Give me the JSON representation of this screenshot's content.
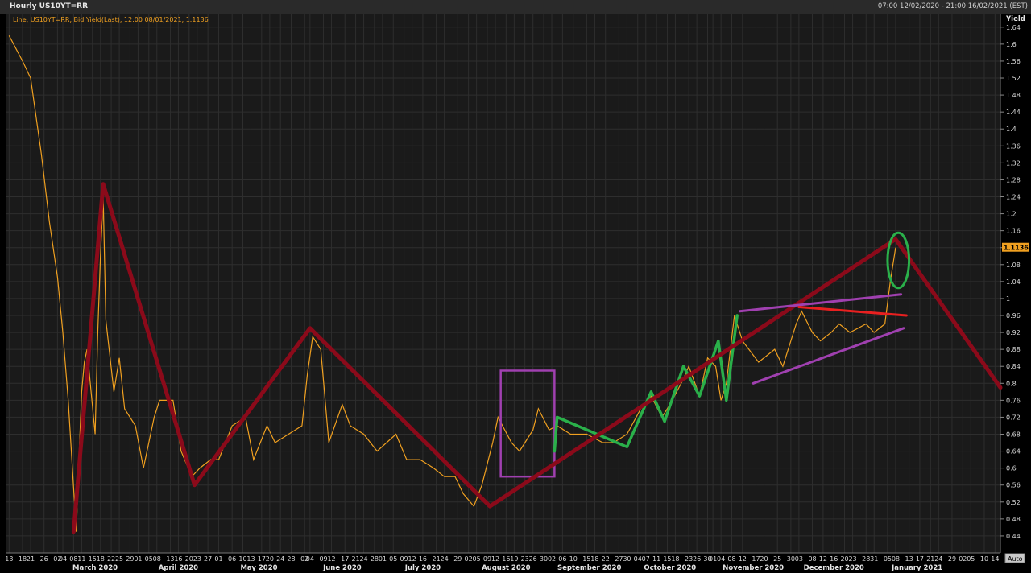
{
  "window": {
    "title": "Hourly US10YT=RR",
    "range": "07:00 12/02/2020 - 21:00 16/02/2021 (EST)"
  },
  "legend": {
    "text": "Line, US10YT=RR, Bid Yield(Last), 12:00 08/01/2021, 1.1136",
    "color": "#f0a020"
  },
  "axis": {
    "y_title": "Yield",
    "last_value_label": "1.1136",
    "auto_button": "Auto"
  },
  "colors": {
    "background": "#1a1a1a",
    "grid": "#2e2e2e",
    "price_line": "#f0a020",
    "trend_dark_red": "#8b0a1a",
    "trend_green": "#2ab04a",
    "trend_purple": "#a040b0",
    "trend_red": "#e82020",
    "box_purple": "#a040b0"
  },
  "chart_data": {
    "type": "line",
    "series": [
      {
        "values": [
          [
            "2020-02-13",
            1.62
          ],
          [
            "2020-02-18",
            1.56
          ],
          [
            "2020-02-21",
            1.52
          ],
          [
            "2020-02-25",
            1.34
          ],
          [
            "2020-02-28",
            1.18
          ],
          [
            "2020-03-02",
            1.05
          ],
          [
            "2020-03-04",
            0.92
          ],
          [
            "2020-03-06",
            0.76
          ],
          [
            "2020-03-09",
            0.45
          ],
          [
            "2020-03-10",
            0.62
          ],
          [
            "2020-03-11",
            0.78
          ],
          [
            "2020-03-12",
            0.85
          ],
          [
            "2020-03-13",
            0.88
          ],
          [
            "2020-03-16",
            0.68
          ],
          [
            "2020-03-17",
            0.92
          ],
          [
            "2020-03-18",
            1.1
          ],
          [
            "2020-03-19",
            1.24
          ],
          [
            "2020-03-20",
            0.95
          ],
          [
            "2020-03-23",
            0.78
          ],
          [
            "2020-03-25",
            0.86
          ],
          [
            "2020-03-27",
            0.74
          ],
          [
            "2020-03-31",
            0.7
          ],
          [
            "2020-04-03",
            0.6
          ],
          [
            "2020-04-07",
            0.72
          ],
          [
            "2020-04-09",
            0.76
          ],
          [
            "2020-04-14",
            0.76
          ],
          [
            "2020-04-17",
            0.64
          ],
          [
            "2020-04-21",
            0.58
          ],
          [
            "2020-04-24",
            0.6
          ],
          [
            "2020-04-28",
            0.62
          ],
          [
            "2020-05-01",
            0.62
          ],
          [
            "2020-05-06",
            0.7
          ],
          [
            "2020-05-11",
            0.72
          ],
          [
            "2020-05-14",
            0.62
          ],
          [
            "2020-05-19",
            0.7
          ],
          [
            "2020-05-22",
            0.66
          ],
          [
            "2020-05-27",
            0.68
          ],
          [
            "2020-06-01",
            0.7
          ],
          [
            "2020-06-03",
            0.82
          ],
          [
            "2020-06-05",
            0.91
          ],
          [
            "2020-06-08",
            0.88
          ],
          [
            "2020-06-11",
            0.66
          ],
          [
            "2020-06-16",
            0.75
          ],
          [
            "2020-06-19",
            0.7
          ],
          [
            "2020-06-24",
            0.68
          ],
          [
            "2020-06-29",
            0.64
          ],
          [
            "2020-07-06",
            0.68
          ],
          [
            "2020-07-10",
            0.62
          ],
          [
            "2020-07-15",
            0.62
          ],
          [
            "2020-07-20",
            0.6
          ],
          [
            "2020-07-24",
            0.58
          ],
          [
            "2020-07-28",
            0.58
          ],
          [
            "2020-07-31",
            0.54
          ],
          [
            "2020-08-04",
            0.51
          ],
          [
            "2020-08-07",
            0.56
          ],
          [
            "2020-08-11",
            0.66
          ],
          [
            "2020-08-13",
            0.72
          ],
          [
            "2020-08-18",
            0.66
          ],
          [
            "2020-08-21",
            0.64
          ],
          [
            "2020-08-26",
            0.69
          ],
          [
            "2020-08-28",
            0.74
          ],
          [
            "2020-09-01",
            0.69
          ],
          [
            "2020-09-04",
            0.7
          ],
          [
            "2020-09-09",
            0.68
          ],
          [
            "2020-09-15",
            0.68
          ],
          [
            "2020-09-21",
            0.66
          ],
          [
            "2020-09-25",
            0.66
          ],
          [
            "2020-09-30",
            0.68
          ],
          [
            "2020-10-06",
            0.75
          ],
          [
            "2020-10-09",
            0.77
          ],
          [
            "2020-10-13",
            0.72
          ],
          [
            "2020-10-16",
            0.75
          ],
          [
            "2020-10-21",
            0.81
          ],
          [
            "2020-10-23",
            0.84
          ],
          [
            "2020-10-27",
            0.77
          ],
          [
            "2020-10-30",
            0.86
          ],
          [
            "2020-11-02",
            0.84
          ],
          [
            "2020-11-04",
            0.76
          ],
          [
            "2020-11-06",
            0.8
          ],
          [
            "2020-11-09",
            0.96
          ],
          [
            "2020-11-12",
            0.9
          ],
          [
            "2020-11-18",
            0.85
          ],
          [
            "2020-11-24",
            0.88
          ],
          [
            "2020-11-27",
            0.84
          ],
          [
            "2020-12-02",
            0.94
          ],
          [
            "2020-12-04",
            0.97
          ],
          [
            "2020-12-08",
            0.92
          ],
          [
            "2020-12-11",
            0.9
          ],
          [
            "2020-12-15",
            0.92
          ],
          [
            "2020-12-18",
            0.94
          ],
          [
            "2020-12-22",
            0.92
          ],
          [
            "2020-12-28",
            0.94
          ],
          [
            "2020-12-31",
            0.92
          ],
          [
            "2021-01-04",
            0.94
          ],
          [
            "2021-01-06",
            1.04
          ],
          [
            "2021-01-08",
            1.12
          ]
        ]
      }
    ],
    "yticks": [
      0.44,
      0.48,
      0.52,
      0.56,
      0.6,
      0.64,
      0.68,
      0.72,
      0.76,
      0.8,
      0.84,
      0.88,
      0.92,
      0.96,
      1,
      1.04,
      1.08,
      1.12,
      1.16,
      1.2,
      1.24,
      1.28,
      1.32,
      1.36,
      1.4,
      1.44,
      1.48,
      1.52,
      1.56,
      1.6,
      1.64
    ],
    "ylim": [
      0.4,
      1.67
    ],
    "xlim": [
      "2020-02-12",
      "2021-02-16"
    ],
    "day_ticks": [
      [
        "2020-02-13",
        "13"
      ],
      [
        "2020-02-18",
        "18"
      ],
      [
        "2020-02-21",
        "21"
      ],
      [
        "2020-02-26",
        "26"
      ],
      [
        "2020-03-02",
        "02"
      ],
      [
        "2020-03-04",
        "04"
      ],
      [
        "2020-03-08",
        "08"
      ],
      [
        "2020-03-11",
        "11"
      ],
      [
        "2020-03-15",
        "15"
      ],
      [
        "2020-03-18",
        "18"
      ],
      [
        "2020-03-22",
        "22"
      ],
      [
        "2020-03-25",
        "25"
      ],
      [
        "2020-03-29",
        "29"
      ],
      [
        "2020-04-01",
        "01"
      ],
      [
        "2020-04-05",
        "05"
      ],
      [
        "2020-04-08",
        "08"
      ],
      [
        "2020-04-13",
        "13"
      ],
      [
        "2020-04-16",
        "16"
      ],
      [
        "2020-04-20",
        "20"
      ],
      [
        "2020-04-23",
        "23"
      ],
      [
        "2020-04-27",
        "27"
      ],
      [
        "2020-05-01",
        "01"
      ],
      [
        "2020-05-06",
        "06"
      ],
      [
        "2020-05-10",
        "10"
      ],
      [
        "2020-05-13",
        "13"
      ],
      [
        "2020-05-17",
        "17"
      ],
      [
        "2020-05-20",
        "20"
      ],
      [
        "2020-05-24",
        "24"
      ],
      [
        "2020-05-28",
        "28"
      ],
      [
        "2020-06-02",
        "02"
      ],
      [
        "2020-06-04",
        "04"
      ],
      [
        "2020-06-09",
        "09"
      ],
      [
        "2020-06-12",
        "12"
      ],
      [
        "2020-06-17",
        "17"
      ],
      [
        "2020-06-21",
        "21"
      ],
      [
        "2020-06-24",
        "24"
      ],
      [
        "2020-06-28",
        "28"
      ],
      [
        "2020-07-01",
        "01"
      ],
      [
        "2020-07-05",
        "05"
      ],
      [
        "2020-07-09",
        "09"
      ],
      [
        "2020-07-12",
        "12"
      ],
      [
        "2020-07-16",
        "16"
      ],
      [
        "2020-07-21",
        "21"
      ],
      [
        "2020-07-24",
        "24"
      ],
      [
        "2020-07-29",
        "29"
      ],
      [
        "2020-08-02",
        "02"
      ],
      [
        "2020-08-05",
        "05"
      ],
      [
        "2020-08-09",
        "09"
      ],
      [
        "2020-08-12",
        "12"
      ],
      [
        "2020-08-16",
        "16"
      ],
      [
        "2020-08-19",
        "19"
      ],
      [
        "2020-08-23",
        "23"
      ],
      [
        "2020-08-26",
        "26"
      ],
      [
        "2020-08-30",
        "30"
      ],
      [
        "2020-09-02",
        "02"
      ],
      [
        "2020-09-06",
        "06"
      ],
      [
        "2020-09-10",
        "10"
      ],
      [
        "2020-09-15",
        "15"
      ],
      [
        "2020-09-18",
        "18"
      ],
      [
        "2020-09-22",
        "22"
      ],
      [
        "2020-09-27",
        "27"
      ],
      [
        "2020-09-30",
        "30"
      ],
      [
        "2020-10-04",
        "04"
      ],
      [
        "2020-10-07",
        "07"
      ],
      [
        "2020-10-11",
        "11"
      ],
      [
        "2020-10-15",
        "15"
      ],
      [
        "2020-10-18",
        "18"
      ],
      [
        "2020-10-23",
        "23"
      ],
      [
        "2020-10-26",
        "26"
      ],
      [
        "2020-10-30",
        "30"
      ],
      [
        "2020-11-01",
        "01"
      ],
      [
        "2020-11-04",
        "04"
      ],
      [
        "2020-11-08",
        "08"
      ],
      [
        "2020-11-12",
        "12"
      ],
      [
        "2020-11-17",
        "17"
      ],
      [
        "2020-11-20",
        "20"
      ],
      [
        "2020-11-25",
        "25"
      ],
      [
        "2020-11-30",
        "30"
      ],
      [
        "2020-12-03",
        "03"
      ],
      [
        "2020-12-08",
        "08"
      ],
      [
        "2020-12-12",
        "12"
      ],
      [
        "2020-12-16",
        "16"
      ],
      [
        "2020-12-20",
        "20"
      ],
      [
        "2020-12-23",
        "23"
      ],
      [
        "2020-12-28",
        "28"
      ],
      [
        "2020-12-31",
        "31"
      ],
      [
        "2021-01-05",
        "05"
      ],
      [
        "2021-01-08",
        "08"
      ],
      [
        "2021-01-13",
        "13"
      ],
      [
        "2021-01-17",
        "17"
      ],
      [
        "2021-01-21",
        "21"
      ],
      [
        "2021-01-24",
        "24"
      ],
      [
        "2021-01-29",
        "29"
      ],
      [
        "2021-02-02",
        "02"
      ],
      [
        "2021-02-05",
        "05"
      ],
      [
        "2021-02-10",
        "10"
      ],
      [
        "2021-02-14",
        "14"
      ]
    ],
    "month_labels": [
      [
        "2020-03-16",
        "March 2020"
      ],
      [
        "2020-04-16",
        "April 2020"
      ],
      [
        "2020-05-16",
        "May 2020"
      ],
      [
        "2020-06-16",
        "June 2020"
      ],
      [
        "2020-07-16",
        "July 2020"
      ],
      [
        "2020-08-16",
        "August 2020"
      ],
      [
        "2020-09-16",
        "September 2020"
      ],
      [
        "2020-10-16",
        "October 2020"
      ],
      [
        "2020-11-16",
        "November 2020"
      ],
      [
        "2020-12-16",
        "December 2020"
      ],
      [
        "2021-01-16",
        "January 2021"
      ]
    ],
    "annotations": {
      "zigzag_dark_red": [
        [
          "2020-03-08",
          0.45
        ],
        [
          "2020-03-19",
          1.27
        ],
        [
          "2020-04-22",
          0.56
        ],
        [
          "2020-06-04",
          0.93
        ],
        [
          "2020-08-10",
          0.51
        ],
        [
          "2021-01-08",
          1.14
        ],
        [
          "2021-02-16",
          0.79
        ]
      ],
      "green_zigzag": [
        [
          "2020-09-03",
          0.64
        ],
        [
          "2020-09-04",
          0.72
        ],
        [
          "2020-09-30",
          0.65
        ],
        [
          "2020-10-09",
          0.78
        ],
        [
          "2020-10-14",
          0.71
        ],
        [
          "2020-10-21",
          0.84
        ],
        [
          "2020-10-27",
          0.77
        ],
        [
          "2020-11-03",
          0.9
        ],
        [
          "2020-11-06",
          0.76
        ],
        [
          "2020-11-10",
          0.96
        ]
      ],
      "purple_box": {
        "x": [
          "2020-08-14",
          "2020-09-03"
        ],
        "y": [
          0.58,
          0.83
        ]
      },
      "purple_upper": [
        [
          "2020-11-11",
          0.97
        ],
        [
          "2021-01-10",
          1.01
        ]
      ],
      "purple_lower": [
        [
          "2020-11-16",
          0.8
        ],
        [
          "2021-01-11",
          0.93
        ]
      ],
      "red_line": [
        [
          "2020-12-03",
          0.98
        ],
        [
          "2021-01-12",
          0.96
        ]
      ],
      "green_ellipse": {
        "center": [
          "2021-01-09",
          1.09
        ],
        "rx_days": 4,
        "ry_yield": 0.065
      }
    }
  }
}
